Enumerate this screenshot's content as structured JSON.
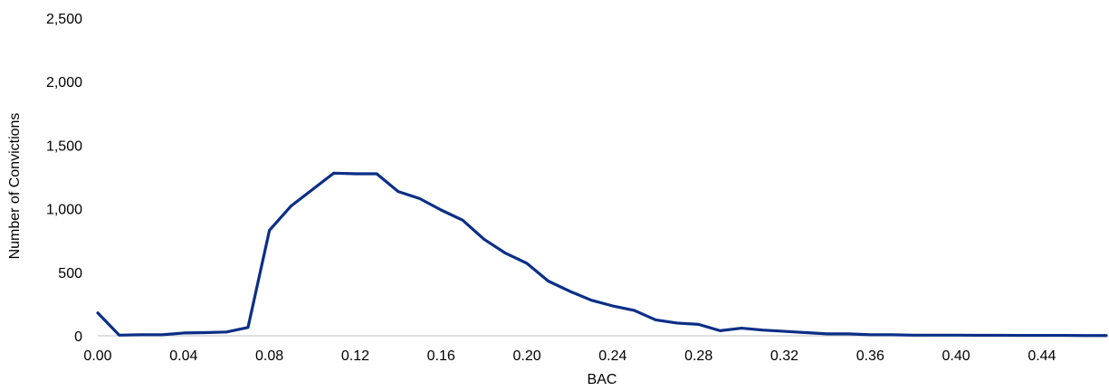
{
  "chart_data": {
    "type": "line",
    "title": "",
    "xlabel": "BAC",
    "ylabel": "Number of Convictions",
    "xlim": [
      0.0,
      0.47
    ],
    "ylim": [
      0,
      2500
    ],
    "x_ticks": [
      0.0,
      0.04,
      0.08,
      0.12,
      0.16,
      0.2,
      0.24,
      0.28,
      0.32,
      0.36,
      0.4,
      0.44
    ],
    "x_tick_labels": [
      "0.00",
      "0.04",
      "0.08",
      "0.12",
      "0.16",
      "0.20",
      "0.24",
      "0.28",
      "0.32",
      "0.36",
      "0.40",
      "0.44"
    ],
    "y_ticks": [
      0,
      500,
      1000,
      1500,
      2000,
      2500
    ],
    "y_tick_labels": [
      "0",
      "500",
      "1,000",
      "1,500",
      "2,000",
      "2,500"
    ],
    "grid": false,
    "legend": "none",
    "series": [
      {
        "color": "#0b2f86",
        "x": [
          0.0,
          0.01,
          0.02,
          0.03,
          0.04,
          0.05,
          0.06,
          0.07,
          0.08,
          0.09,
          0.1,
          0.11,
          0.12,
          0.13,
          0.14,
          0.15,
          0.16,
          0.17,
          0.18,
          0.19,
          0.2,
          0.21,
          0.22,
          0.23,
          0.24,
          0.25,
          0.26,
          0.27,
          0.28,
          0.29,
          0.3,
          0.31,
          0.32,
          0.33,
          0.34,
          0.35,
          0.36,
          0.37,
          0.38,
          0.39,
          0.4,
          0.41,
          0.42,
          0.43,
          0.44,
          0.45,
          0.46,
          0.47
        ],
        "values": [
          180,
          5,
          8,
          8,
          22,
          25,
          30,
          65,
          830,
          1020,
          1150,
          1280,
          1275,
          1275,
          1135,
          1080,
          990,
          910,
          760,
          650,
          570,
          430,
          350,
          280,
          235,
          200,
          125,
          100,
          90,
          40,
          60,
          45,
          35,
          25,
          15,
          15,
          8,
          8,
          5,
          5,
          5,
          4,
          4,
          3,
          3,
          3,
          2,
          2
        ]
      }
    ]
  }
}
